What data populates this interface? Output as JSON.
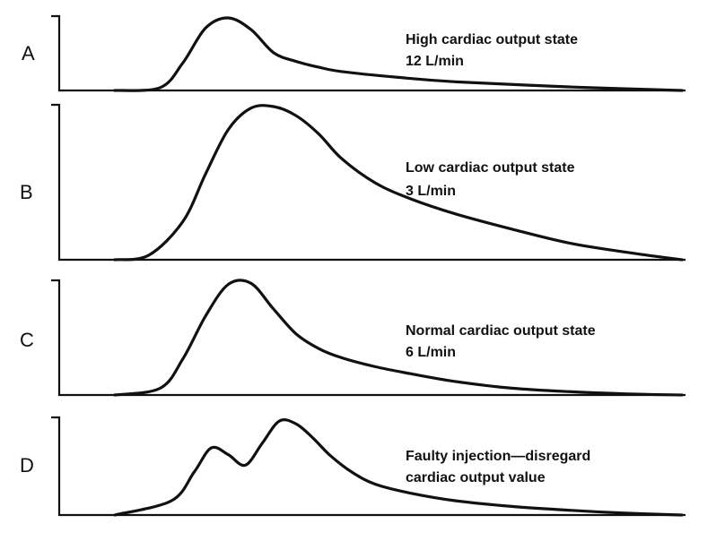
{
  "chart_data": [
    {
      "type": "line",
      "panel_label": "A",
      "annotation": [
        "High cardiac output state",
        "12 L/min"
      ],
      "series": [
        {
          "x": [
            0.0,
            0.08,
            0.12,
            0.16,
            0.2,
            0.24,
            0.28,
            0.32,
            0.36,
            0.4,
            0.5,
            0.6,
            0.8,
            1.0
          ],
          "values": [
            0.0,
            0.04,
            0.38,
            0.86,
            1.0,
            0.84,
            0.52,
            0.4,
            0.32,
            0.26,
            0.18,
            0.12,
            0.05,
            0.0
          ]
        }
      ]
    },
    {
      "type": "line",
      "panel_label": "B",
      "annotation": [
        "Low cardiac output state",
        "3 L/min"
      ],
      "series": [
        {
          "x": [
            0.0,
            0.06,
            0.12,
            0.16,
            0.2,
            0.24,
            0.28,
            0.32,
            0.36,
            0.4,
            0.46,
            0.52,
            0.6,
            0.7,
            0.8,
            0.9,
            1.0
          ],
          "values": [
            0.0,
            0.03,
            0.25,
            0.56,
            0.85,
            0.99,
            1.0,
            0.94,
            0.82,
            0.66,
            0.5,
            0.4,
            0.3,
            0.2,
            0.11,
            0.05,
            0.0
          ]
        }
      ]
    },
    {
      "type": "line",
      "panel_label": "C",
      "annotation": [
        "Normal cardiac output state",
        "6 L/min"
      ],
      "series": [
        {
          "x": [
            0.0,
            0.08,
            0.12,
            0.16,
            0.2,
            0.24,
            0.28,
            0.32,
            0.36,
            0.4,
            0.46,
            0.52,
            0.6,
            0.7,
            0.8,
            0.9,
            1.0
          ],
          "values": [
            0.0,
            0.06,
            0.32,
            0.7,
            0.98,
            0.99,
            0.76,
            0.54,
            0.41,
            0.33,
            0.25,
            0.19,
            0.12,
            0.06,
            0.03,
            0.01,
            0.0
          ]
        }
      ]
    },
    {
      "type": "line",
      "panel_label": "D",
      "annotation": [
        "Faulty injection—disregard",
        "cardiac output value"
      ],
      "series": [
        {
          "x": [
            0.0,
            0.1,
            0.14,
            0.17,
            0.2,
            0.23,
            0.26,
            0.29,
            0.32,
            0.35,
            0.38,
            0.42,
            0.46,
            0.52,
            0.6,
            0.7,
            0.8,
            0.9,
            1.0
          ],
          "values": [
            0.0,
            0.15,
            0.45,
            0.7,
            0.63,
            0.52,
            0.75,
            0.98,
            0.95,
            0.8,
            0.62,
            0.44,
            0.32,
            0.23,
            0.15,
            0.09,
            0.05,
            0.02,
            0.0
          ]
        }
      ]
    }
  ]
}
